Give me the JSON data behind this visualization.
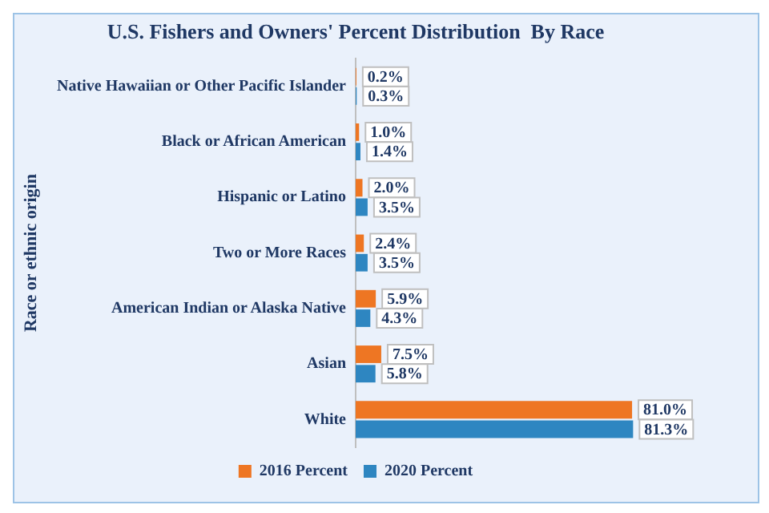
{
  "chart_data": {
    "type": "bar",
    "orientation": "horizontal",
    "title": "U.S. Fishers and Owners' Percent Distribution  By Race",
    "ylabel": "Race or ethnic origin",
    "categories": [
      "Native Hawaiian or Other Pacific Islander",
      "Black or African American",
      "Hispanic or Latino",
      "Two or More Races",
      "American Indian or Alaska Native",
      "Asian",
      "White"
    ],
    "series": [
      {
        "name": "2016 Percent",
        "color": "#ee7623",
        "values": [
          0.2,
          1.0,
          2.0,
          2.4,
          5.9,
          7.5,
          81.0
        ],
        "value_labels": [
          "0.2%",
          "1.0%",
          "2.0%",
          "2.4%",
          "5.9%",
          "7.5%",
          "81.0%"
        ]
      },
      {
        "name": "2020 Percent",
        "color": "#2e86c1",
        "values": [
          0.3,
          1.4,
          3.5,
          3.5,
          4.3,
          5.8,
          81.3
        ],
        "value_labels": [
          "0.3%",
          "1.4%",
          "3.5%",
          "3.5%",
          "4.3%",
          "5.8%",
          "81.3%"
        ]
      }
    ],
    "legend": "bottom",
    "tick_labels": "y",
    "grid": false
  }
}
